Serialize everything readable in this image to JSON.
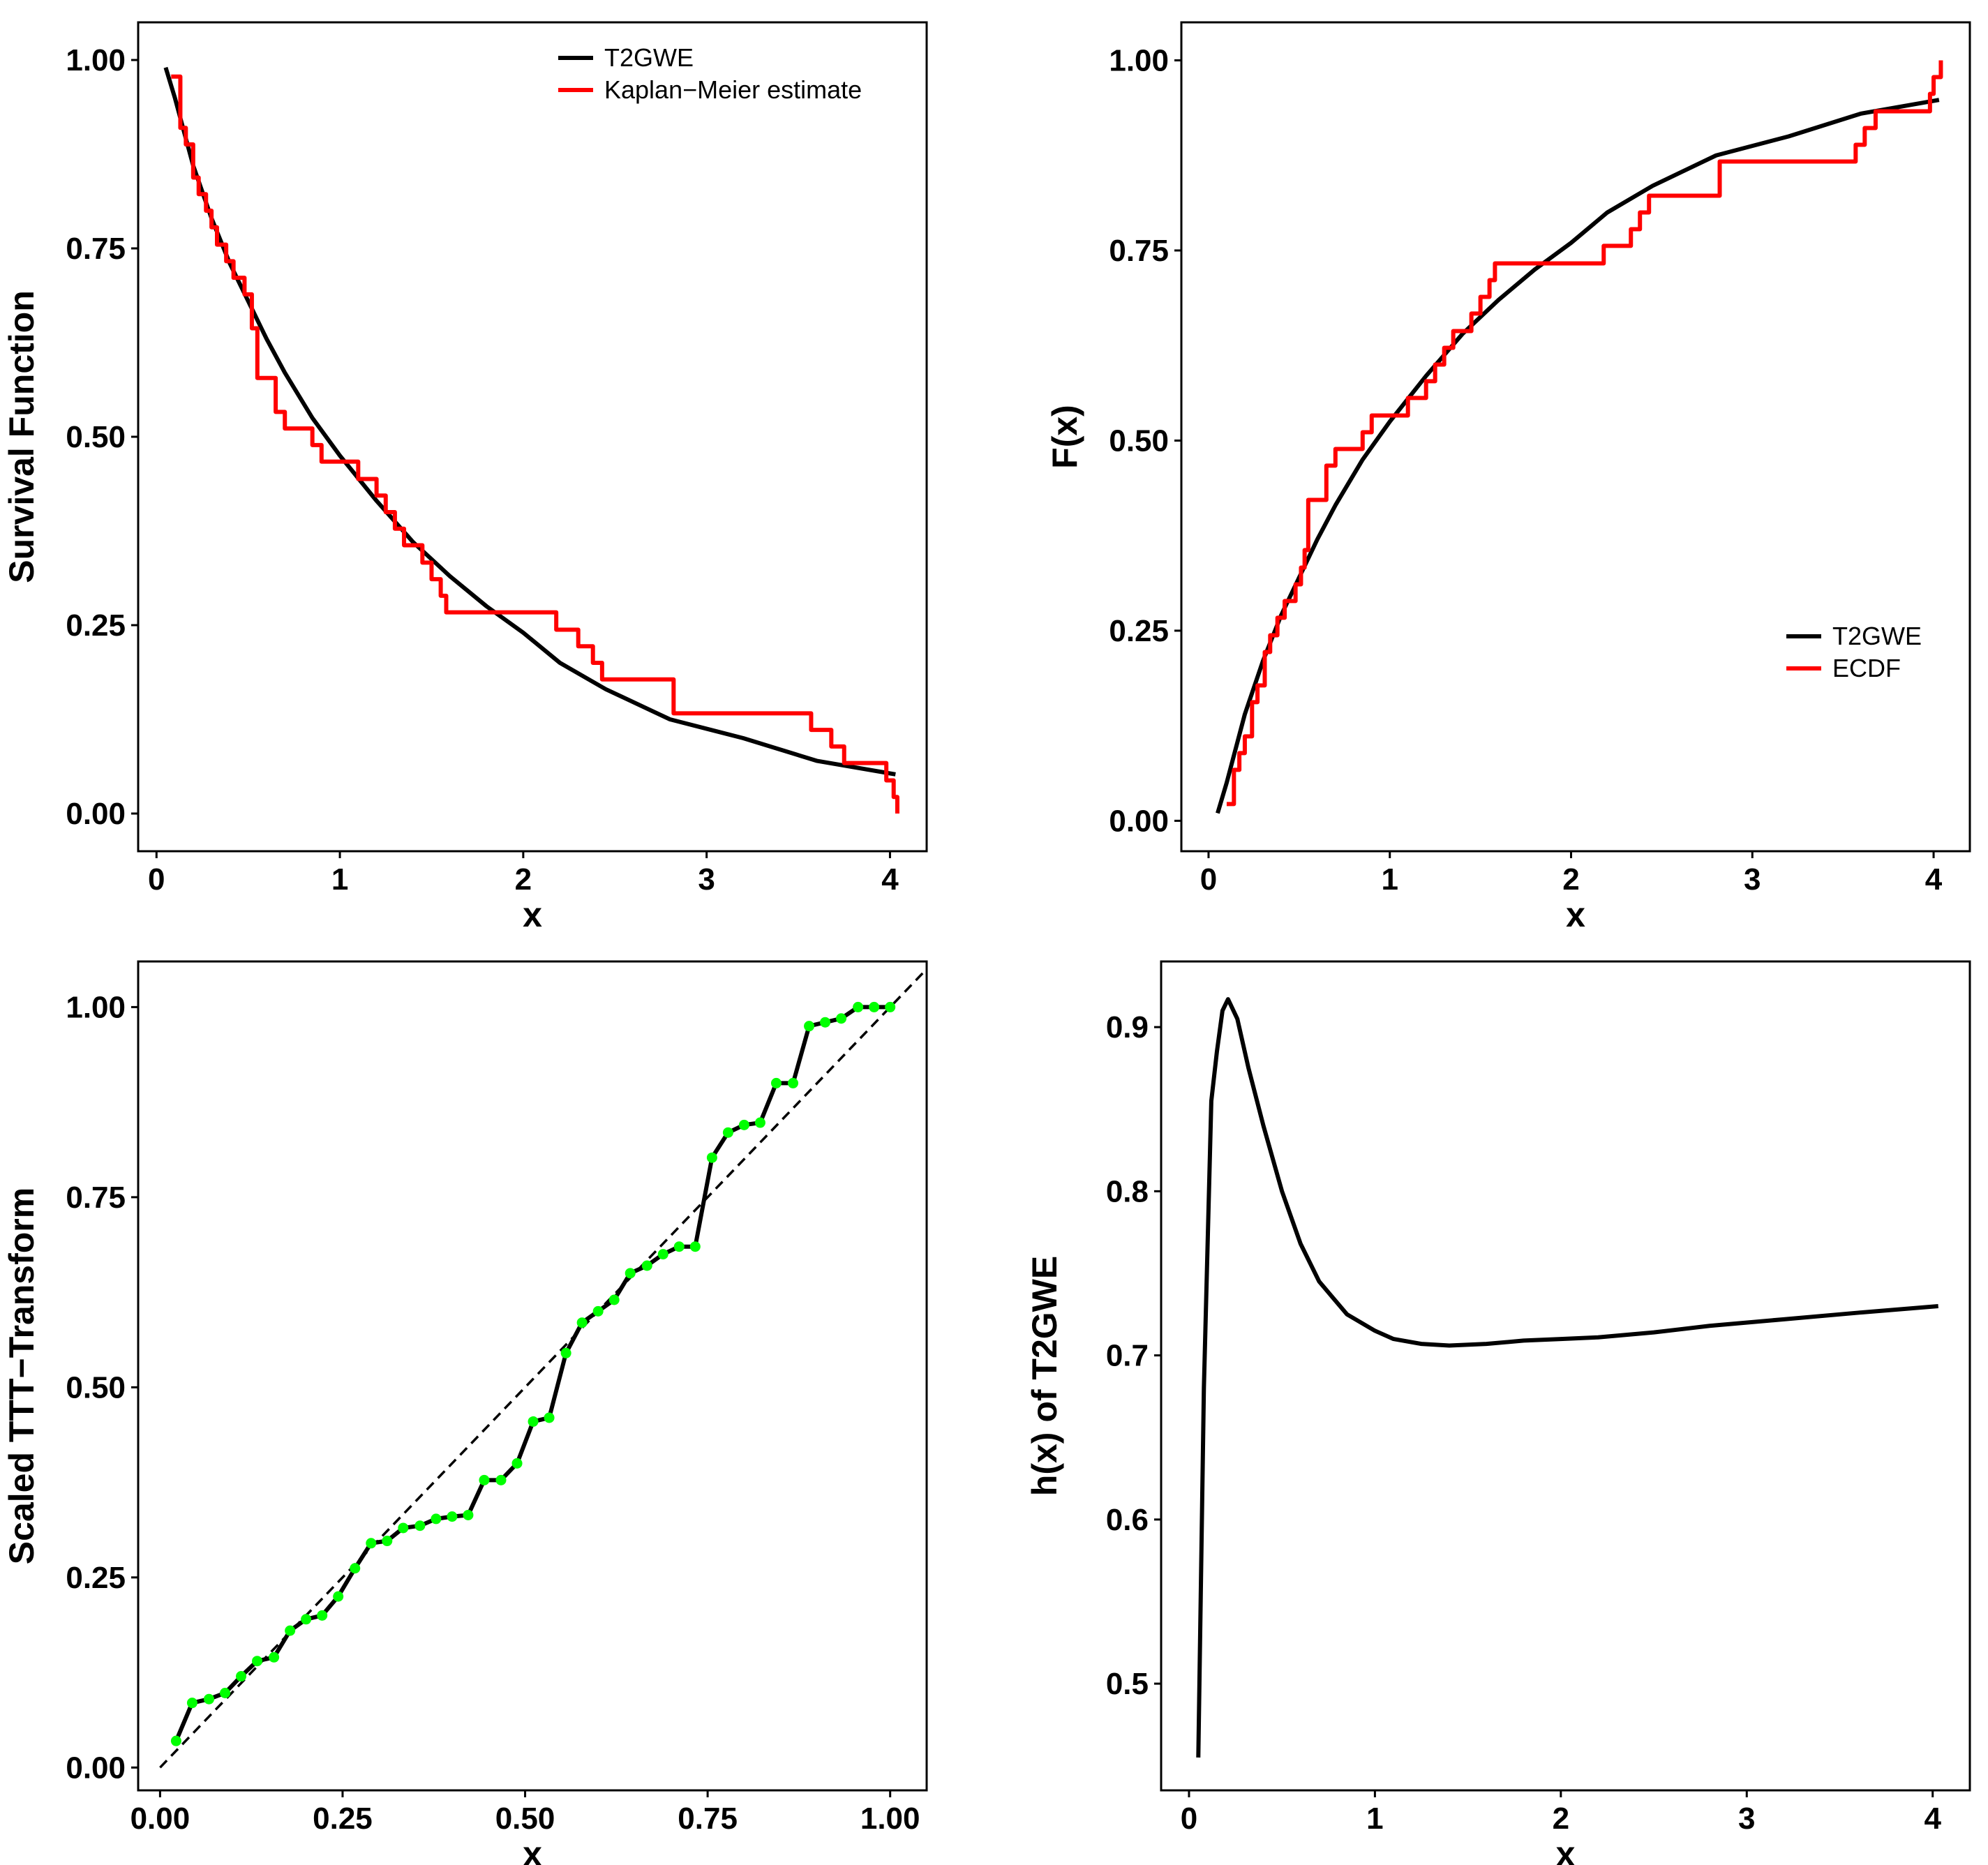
{
  "chart_data": [
    {
      "id": "survival",
      "type": "line",
      "title": "",
      "xlabel": "x",
      "ylabel": "Survival Function",
      "xlim": [
        -0.1,
        4.2
      ],
      "ylim": [
        -0.05,
        1.05
      ],
      "xticks": [
        0,
        1,
        2,
        3,
        4
      ],
      "xtick_labels": [
        "0",
        "1",
        "2",
        "3",
        "4"
      ],
      "yticks": [
        0,
        0.25,
        0.5,
        0.75,
        1.0
      ],
      "ytick_labels": [
        "0.00",
        "0.25",
        "0.50",
        "0.75",
        "1.00"
      ],
      "grid": false,
      "legend_position": "top-right",
      "series": [
        {
          "name": "T2GWE",
          "color": "#000000",
          "style": "line",
          "x": [
            0.05,
            0.1,
            0.2,
            0.3,
            0.4,
            0.5,
            0.6,
            0.7,
            0.85,
            1.0,
            1.2,
            1.4,
            1.6,
            1.8,
            2.0,
            2.2,
            2.45,
            2.8,
            3.2,
            3.6,
            4.03
          ],
          "y": [
            0.99,
            0.95,
            0.86,
            0.79,
            0.73,
            0.68,
            0.63,
            0.585,
            0.525,
            0.475,
            0.415,
            0.36,
            0.315,
            0.275,
            0.24,
            0.2,
            0.165,
            0.125,
            0.1,
            0.07,
            0.052
          ]
        },
        {
          "name": "Kaplan-Meier estimate",
          "color": "#ff0000",
          "style": "step",
          "x": [
            0.08,
            0.13,
            0.16,
            0.2,
            0.23,
            0.27,
            0.3,
            0.33,
            0.38,
            0.42,
            0.48,
            0.52,
            0.55,
            0.65,
            0.7,
            0.85,
            0.9,
            1.1,
            1.2,
            1.25,
            1.3,
            1.35,
            1.45,
            1.5,
            1.55,
            1.58,
            1.6,
            2.18,
            2.3,
            2.38,
            2.43,
            2.82,
            3.57,
            3.62,
            3.68,
            3.75,
            3.98,
            4.0,
            4.02,
            4.04
          ],
          "y": [
            0.978,
            0.91,
            0.888,
            0.844,
            0.822,
            0.8,
            0.778,
            0.755,
            0.733,
            0.711,
            0.689,
            0.644,
            0.578,
            0.533,
            0.511,
            0.489,
            0.467,
            0.444,
            0.422,
            0.4,
            0.378,
            0.356,
            0.333,
            0.311,
            0.289,
            0.267,
            0.267,
            0.244,
            0.222,
            0.2,
            0.178,
            0.133,
            0.111,
            0.111,
            0.089,
            0.067,
            0.044,
            0.044,
            0.022,
            0.0
          ]
        }
      ]
    },
    {
      "id": "cdf",
      "type": "line",
      "title": "",
      "xlabel": "x",
      "ylabel": "F(x)",
      "xlim": [
        -0.15,
        4.2
      ],
      "ylim": [
        -0.04,
        1.05
      ],
      "xticks": [
        0,
        1,
        2,
        3,
        4
      ],
      "xtick_labels": [
        "0",
        "1",
        "2",
        "3",
        "4"
      ],
      "yticks": [
        0,
        0.25,
        0.5,
        0.75,
        1.0
      ],
      "ytick_labels": [
        "0.00",
        "0.25",
        "0.50",
        "0.75",
        "1.00"
      ],
      "grid": false,
      "legend_position": "bottom-right",
      "series": [
        {
          "name": "T2GWE",
          "color": "#000000",
          "style": "line",
          "x": [
            0.05,
            0.1,
            0.2,
            0.3,
            0.4,
            0.5,
            0.6,
            0.7,
            0.85,
            1.0,
            1.2,
            1.4,
            1.6,
            1.8,
            2.0,
            2.2,
            2.45,
            2.8,
            3.2,
            3.6,
            4.03
          ],
          "y": [
            0.01,
            0.05,
            0.14,
            0.21,
            0.27,
            0.32,
            0.37,
            0.415,
            0.475,
            0.525,
            0.585,
            0.64,
            0.685,
            0.725,
            0.76,
            0.8,
            0.835,
            0.875,
            0.9,
            0.93,
            0.948
          ]
        },
        {
          "name": "ECDF",
          "color": "#ff0000",
          "style": "step",
          "x": [
            0.1,
            0.14,
            0.17,
            0.2,
            0.24,
            0.27,
            0.31,
            0.34,
            0.38,
            0.42,
            0.48,
            0.51,
            0.53,
            0.55,
            0.6,
            0.65,
            0.7,
            0.85,
            0.9,
            1.1,
            1.2,
            1.25,
            1.3,
            1.35,
            1.45,
            1.5,
            1.55,
            1.58,
            1.6,
            2.18,
            2.33,
            2.38,
            2.43,
            2.82,
            3.57,
            3.62,
            3.68,
            3.98,
            4.0,
            4.02,
            4.04
          ],
          "y": [
            0.022,
            0.067,
            0.089,
            0.111,
            0.156,
            0.178,
            0.222,
            0.244,
            0.267,
            0.289,
            0.311,
            0.333,
            0.356,
            0.422,
            0.422,
            0.467,
            0.489,
            0.511,
            0.533,
            0.556,
            0.578,
            0.6,
            0.622,
            0.644,
            0.667,
            0.689,
            0.711,
            0.733,
            0.733,
            0.756,
            0.778,
            0.8,
            0.822,
            0.867,
            0.889,
            0.911,
            0.933,
            0.956,
            0.978,
            0.978,
            1.0
          ]
        }
      ]
    },
    {
      "id": "ttt",
      "type": "line",
      "title": "",
      "xlabel": "x",
      "ylabel": "Scaled TTT−Transform",
      "xlim": [
        -0.03,
        1.05
      ],
      "ylim": [
        -0.03,
        1.06
      ],
      "xticks": [
        0,
        0.25,
        0.5,
        0.75,
        1.0
      ],
      "xtick_labels": [
        "0.00",
        "0.25",
        "0.50",
        "0.75",
        "1.00"
      ],
      "yticks": [
        0,
        0.25,
        0.5,
        0.75,
        1.0
      ],
      "ytick_labels": [
        "0.00",
        "0.25",
        "0.50",
        "0.75",
        "1.00"
      ],
      "grid": false,
      "legend_position": "none",
      "reference_line": {
        "x": [
          0,
          1.05
        ],
        "y": [
          0,
          1.05
        ],
        "style": "dashed",
        "color": "#000000"
      },
      "series": [
        {
          "name": "Scaled TTT",
          "color": "#000000",
          "marker_color": "#00ff00",
          "style": "line+points",
          "x": [
            0.022,
            0.044,
            0.067,
            0.089,
            0.111,
            0.133,
            0.156,
            0.178,
            0.2,
            0.222,
            0.244,
            0.267,
            0.289,
            0.311,
            0.333,
            0.356,
            0.378,
            0.4,
            0.422,
            0.444,
            0.467,
            0.489,
            0.511,
            0.533,
            0.556,
            0.578,
            0.6,
            0.622,
            0.644,
            0.667,
            0.689,
            0.711,
            0.733,
            0.756,
            0.778,
            0.8,
            0.822,
            0.844,
            0.867,
            0.889,
            0.911,
            0.933,
            0.956,
            0.978,
            1.0
          ],
          "y": [
            0.035,
            0.085,
            0.09,
            0.098,
            0.12,
            0.14,
            0.145,
            0.18,
            0.195,
            0.2,
            0.225,
            0.262,
            0.295,
            0.298,
            0.315,
            0.318,
            0.327,
            0.33,
            0.332,
            0.378,
            0.378,
            0.4,
            0.455,
            0.46,
            0.545,
            0.585,
            0.6,
            0.615,
            0.65,
            0.66,
            0.675,
            0.685,
            0.685,
            0.802,
            0.835,
            0.845,
            0.848,
            0.9,
            0.9,
            0.975,
            0.98,
            0.985,
            1.0,
            1.0,
            1.0
          ]
        }
      ]
    },
    {
      "id": "hazard",
      "type": "line",
      "title": "",
      "xlabel": "x",
      "ylabel": "h(x) of T2GWE",
      "xlim": [
        -0.15,
        4.2
      ],
      "ylim": [
        0.435,
        0.94
      ],
      "xticks": [
        0,
        1,
        2,
        3,
        4
      ],
      "xtick_labels": [
        "0",
        "1",
        "2",
        "3",
        "4"
      ],
      "yticks": [
        0.5,
        0.6,
        0.7,
        0.8,
        0.9
      ],
      "ytick_labels": [
        "0.5",
        "0.6",
        "0.7",
        "0.8",
        "0.9"
      ],
      "grid": false,
      "legend_position": "none",
      "series": [
        {
          "name": "T2GWE",
          "color": "#000000",
          "style": "line",
          "x": [
            0.05,
            0.08,
            0.12,
            0.15,
            0.18,
            0.21,
            0.26,
            0.32,
            0.4,
            0.5,
            0.6,
            0.7,
            0.85,
            1.0,
            1.1,
            1.25,
            1.4,
            1.6,
            1.8,
            2.0,
            2.2,
            2.5,
            2.8,
            3.2,
            3.6,
            4.03
          ],
          "y": [
            0.455,
            0.68,
            0.855,
            0.885,
            0.91,
            0.917,
            0.905,
            0.875,
            0.84,
            0.8,
            0.768,
            0.745,
            0.725,
            0.715,
            0.71,
            0.707,
            0.706,
            0.707,
            0.709,
            0.71,
            0.711,
            0.714,
            0.718,
            0.722,
            0.726,
            0.73
          ]
        }
      ]
    }
  ]
}
